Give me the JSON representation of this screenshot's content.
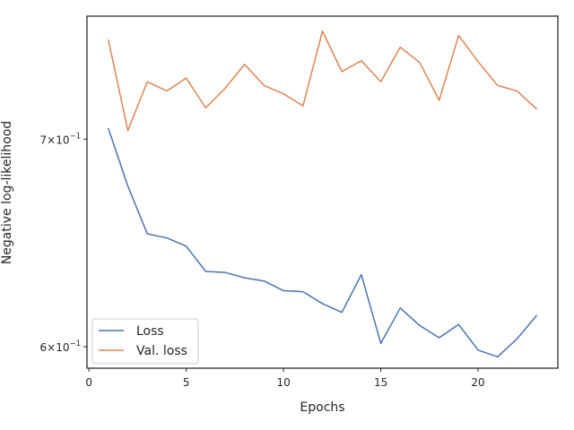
{
  "chart_data": {
    "type": "line",
    "xlabel": "Epochs",
    "ylabel": "Negative log-likelihood",
    "yscale": "log",
    "xlim": [
      -0.1,
      24.1
    ],
    "ylim": [
      0.5905,
      0.767
    ],
    "x_ticks": [
      0,
      5,
      10,
      15,
      20
    ],
    "y_ticks": [
      {
        "value": 0.6,
        "base": "6×10",
        "exp": "−1"
      },
      {
        "value": 0.7,
        "base": "7×10",
        "exp": "−1"
      }
    ],
    "grid": false,
    "legend_position": "lower-left",
    "x": [
      1,
      2,
      3,
      4,
      5,
      6,
      7,
      8,
      9,
      10,
      11,
      12,
      13,
      14,
      15,
      16,
      17,
      18,
      19,
      20,
      21,
      22,
      23
    ],
    "series": [
      {
        "name": "Loss",
        "color": "#4c72b0",
        "values": [
          0.7055,
          0.676,
          0.6525,
          0.6505,
          0.6465,
          0.6345,
          0.634,
          0.6315,
          0.63,
          0.6255,
          0.625,
          0.6195,
          0.6155,
          0.633,
          0.6015,
          0.6175,
          0.6095,
          0.604,
          0.61,
          0.5985,
          0.5955,
          0.6035,
          0.614
        ]
      },
      {
        "name": "Val. loss",
        "color": "#dd8452",
        "values": [
          0.7535,
          0.7045,
          0.7305,
          0.7255,
          0.7325,
          0.7165,
          0.727,
          0.74,
          0.7285,
          0.724,
          0.7175,
          0.7585,
          0.736,
          0.742,
          0.7305,
          0.7495,
          0.741,
          0.7205,
          0.756,
          0.7415,
          0.7285,
          0.7255,
          0.716
        ]
      }
    ]
  }
}
